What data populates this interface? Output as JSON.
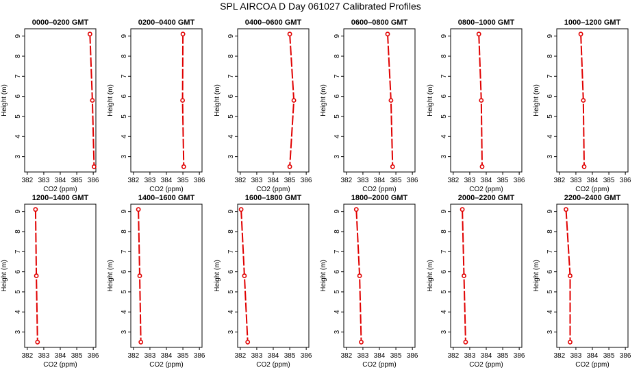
{
  "figure_title": "SPL AIRCOA D  Day 061027  Calibrated Profiles",
  "chart_data": [
    {
      "type": "line",
      "title": "0000–0200 GMT",
      "xlabel": "CO2 (ppm)",
      "ylabel": "Height (m)",
      "xlim": [
        382,
        386
      ],
      "ylim": [
        2.5,
        9.1
      ],
      "xticks": [
        382,
        383,
        384,
        385,
        386
      ],
      "yticks": [
        3,
        4,
        5,
        6,
        7,
        8,
        9
      ],
      "color": "#e00000",
      "points": [
        {
          "x": 385.8,
          "y": 9.1
        },
        {
          "x": 385.95,
          "y": 5.8
        },
        {
          "x": 386.05,
          "y": 2.5
        }
      ]
    },
    {
      "type": "line",
      "title": "0200–0400 GMT",
      "xlabel": "CO2 (ppm)",
      "ylabel": "Height (m)",
      "xlim": [
        382,
        386
      ],
      "ylim": [
        2.5,
        9.1
      ],
      "xticks": [
        382,
        383,
        384,
        385,
        386
      ],
      "yticks": [
        3,
        4,
        5,
        6,
        7,
        8,
        9
      ],
      "color": "#e00000",
      "points": [
        {
          "x": 385.0,
          "y": 9.1
        },
        {
          "x": 384.98,
          "y": 5.8
        },
        {
          "x": 385.05,
          "y": 2.5
        }
      ]
    },
    {
      "type": "line",
      "title": "0400–0600 GMT",
      "xlabel": "CO2 (ppm)",
      "ylabel": "Height (m)",
      "xlim": [
        382,
        386
      ],
      "ylim": [
        2.5,
        9.1
      ],
      "xticks": [
        382,
        383,
        384,
        385,
        386
      ],
      "yticks": [
        3,
        4,
        5,
        6,
        7,
        8,
        9
      ],
      "color": "#e00000",
      "points": [
        {
          "x": 385.0,
          "y": 9.1
        },
        {
          "x": 385.25,
          "y": 5.8
        },
        {
          "x": 385.0,
          "y": 2.5
        }
      ]
    },
    {
      "type": "line",
      "title": "0600–0800 GMT",
      "xlabel": "CO2 (ppm)",
      "ylabel": "Height (m)",
      "xlim": [
        382,
        386
      ],
      "ylim": [
        2.5,
        9.1
      ],
      "xticks": [
        382,
        383,
        384,
        385,
        386
      ],
      "yticks": [
        3,
        4,
        5,
        6,
        7,
        8,
        9
      ],
      "color": "#e00000",
      "points": [
        {
          "x": 384.5,
          "y": 9.1
        },
        {
          "x": 384.7,
          "y": 5.8
        },
        {
          "x": 384.8,
          "y": 2.5
        }
      ]
    },
    {
      "type": "line",
      "title": "0800–1000 GMT",
      "xlabel": "CO2 (ppm)",
      "ylabel": "Height (m)",
      "xlim": [
        382,
        386
      ],
      "ylim": [
        2.5,
        9.1
      ],
      "xticks": [
        382,
        383,
        384,
        385,
        386
      ],
      "yticks": [
        3,
        4,
        5,
        6,
        7,
        8,
        9
      ],
      "color": "#e00000",
      "points": [
        {
          "x": 383.55,
          "y": 9.1
        },
        {
          "x": 383.7,
          "y": 5.8
        },
        {
          "x": 383.75,
          "y": 2.5
        }
      ]
    },
    {
      "type": "line",
      "title": "1000–1200 GMT",
      "xlabel": "CO2 (ppm)",
      "ylabel": "Height (m)",
      "xlim": [
        382,
        386
      ],
      "ylim": [
        2.5,
        9.1
      ],
      "xticks": [
        382,
        383,
        384,
        385,
        386
      ],
      "yticks": [
        3,
        4,
        5,
        6,
        7,
        8,
        9
      ],
      "color": "#e00000",
      "points": [
        {
          "x": 383.3,
          "y": 9.1
        },
        {
          "x": 383.45,
          "y": 5.8
        },
        {
          "x": 383.5,
          "y": 2.5
        }
      ]
    },
    {
      "type": "line",
      "title": "1200–1400 GMT",
      "xlabel": "CO2 (ppm)",
      "ylabel": "Height (m)",
      "xlim": [
        382,
        386
      ],
      "ylim": [
        2.5,
        9.1
      ],
      "xticks": [
        382,
        383,
        384,
        385,
        386
      ],
      "yticks": [
        3,
        4,
        5,
        6,
        7,
        8,
        9
      ],
      "color": "#e00000",
      "points": [
        {
          "x": 382.5,
          "y": 9.1
        },
        {
          "x": 382.55,
          "y": 5.8
        },
        {
          "x": 382.62,
          "y": 2.5
        }
      ]
    },
    {
      "type": "line",
      "title": "1400–1600 GMT",
      "xlabel": "CO2 (ppm)",
      "ylabel": "Height (m)",
      "xlim": [
        382,
        386
      ],
      "ylim": [
        2.5,
        9.1
      ],
      "xticks": [
        382,
        383,
        384,
        385,
        386
      ],
      "yticks": [
        3,
        4,
        5,
        6,
        7,
        8,
        9
      ],
      "color": "#e00000",
      "points": [
        {
          "x": 382.3,
          "y": 9.1
        },
        {
          "x": 382.38,
          "y": 5.8
        },
        {
          "x": 382.45,
          "y": 2.5
        }
      ]
    },
    {
      "type": "line",
      "title": "1600–1800 GMT",
      "xlabel": "CO2 (ppm)",
      "ylabel": "Height (m)",
      "xlim": [
        382,
        386
      ],
      "ylim": [
        2.5,
        9.1
      ],
      "xticks": [
        382,
        383,
        384,
        385,
        386
      ],
      "yticks": [
        3,
        4,
        5,
        6,
        7,
        8,
        9
      ],
      "color": "#e00000",
      "points": [
        {
          "x": 382.05,
          "y": 9.1
        },
        {
          "x": 382.25,
          "y": 5.8
        },
        {
          "x": 382.45,
          "y": 2.5
        }
      ]
    },
    {
      "type": "line",
      "title": "1800–2000 GMT",
      "xlabel": "CO2 (ppm)",
      "ylabel": "Height (m)",
      "xlim": [
        382,
        386
      ],
      "ylim": [
        2.5,
        9.1
      ],
      "xticks": [
        382,
        383,
        384,
        385,
        386
      ],
      "yticks": [
        3,
        4,
        5,
        6,
        7,
        8,
        9
      ],
      "color": "#e00000",
      "points": [
        {
          "x": 382.6,
          "y": 9.1
        },
        {
          "x": 382.8,
          "y": 5.8
        },
        {
          "x": 382.9,
          "y": 2.5
        }
      ]
    },
    {
      "type": "line",
      "title": "2000–2200 GMT",
      "xlabel": "CO2 (ppm)",
      "ylabel": "Height (m)",
      "xlim": [
        382,
        386
      ],
      "ylim": [
        2.5,
        9.1
      ],
      "xticks": [
        382,
        383,
        384,
        385,
        386
      ],
      "yticks": [
        3,
        4,
        5,
        6,
        7,
        8,
        9
      ],
      "color": "#e00000",
      "points": [
        {
          "x": 382.55,
          "y": 9.1
        },
        {
          "x": 382.65,
          "y": 5.8
        },
        {
          "x": 382.75,
          "y": 2.5
        }
      ]
    },
    {
      "type": "line",
      "title": "2200–2400 GMT",
      "xlabel": "CO2 (ppm)",
      "ylabel": "Height (m)",
      "xlim": [
        382,
        386
      ],
      "ylim": [
        2.5,
        9.1
      ],
      "xticks": [
        382,
        383,
        384,
        385,
        386
      ],
      "yticks": [
        3,
        4,
        5,
        6,
        7,
        8,
        9
      ],
      "color": "#e00000",
      "points": [
        {
          "x": 382.4,
          "y": 9.1
        },
        {
          "x": 382.65,
          "y": 5.8
        },
        {
          "x": 382.65,
          "y": 2.5
        }
      ]
    }
  ]
}
